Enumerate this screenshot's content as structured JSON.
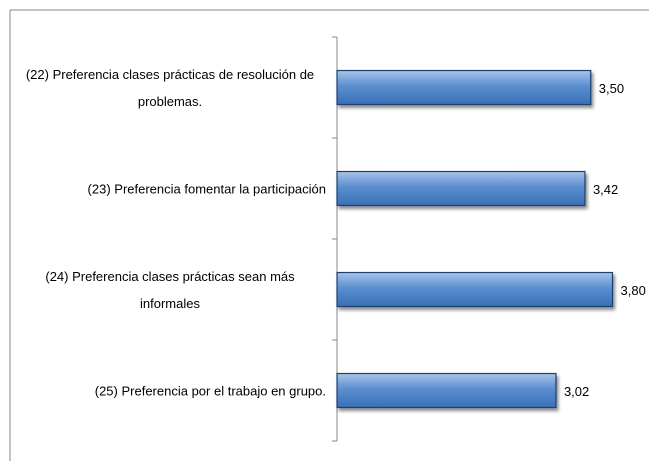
{
  "chart_data": {
    "type": "bar",
    "orientation": "horizontal",
    "categories": [
      "(22)  Preferencia clases prácticas de  resolución de problemas.",
      "(23) Preferencia  fomentar la participación",
      "(24) Preferencia clases prácticas sean más informales",
      "(25) Preferencia por el trabajo en grupo."
    ],
    "values": [
      3.5,
      3.42,
      3.8,
      3.02
    ],
    "value_labels": [
      "3,50",
      "3,42",
      "3,80",
      "3,02"
    ],
    "color": "#4f81bd"
  }
}
